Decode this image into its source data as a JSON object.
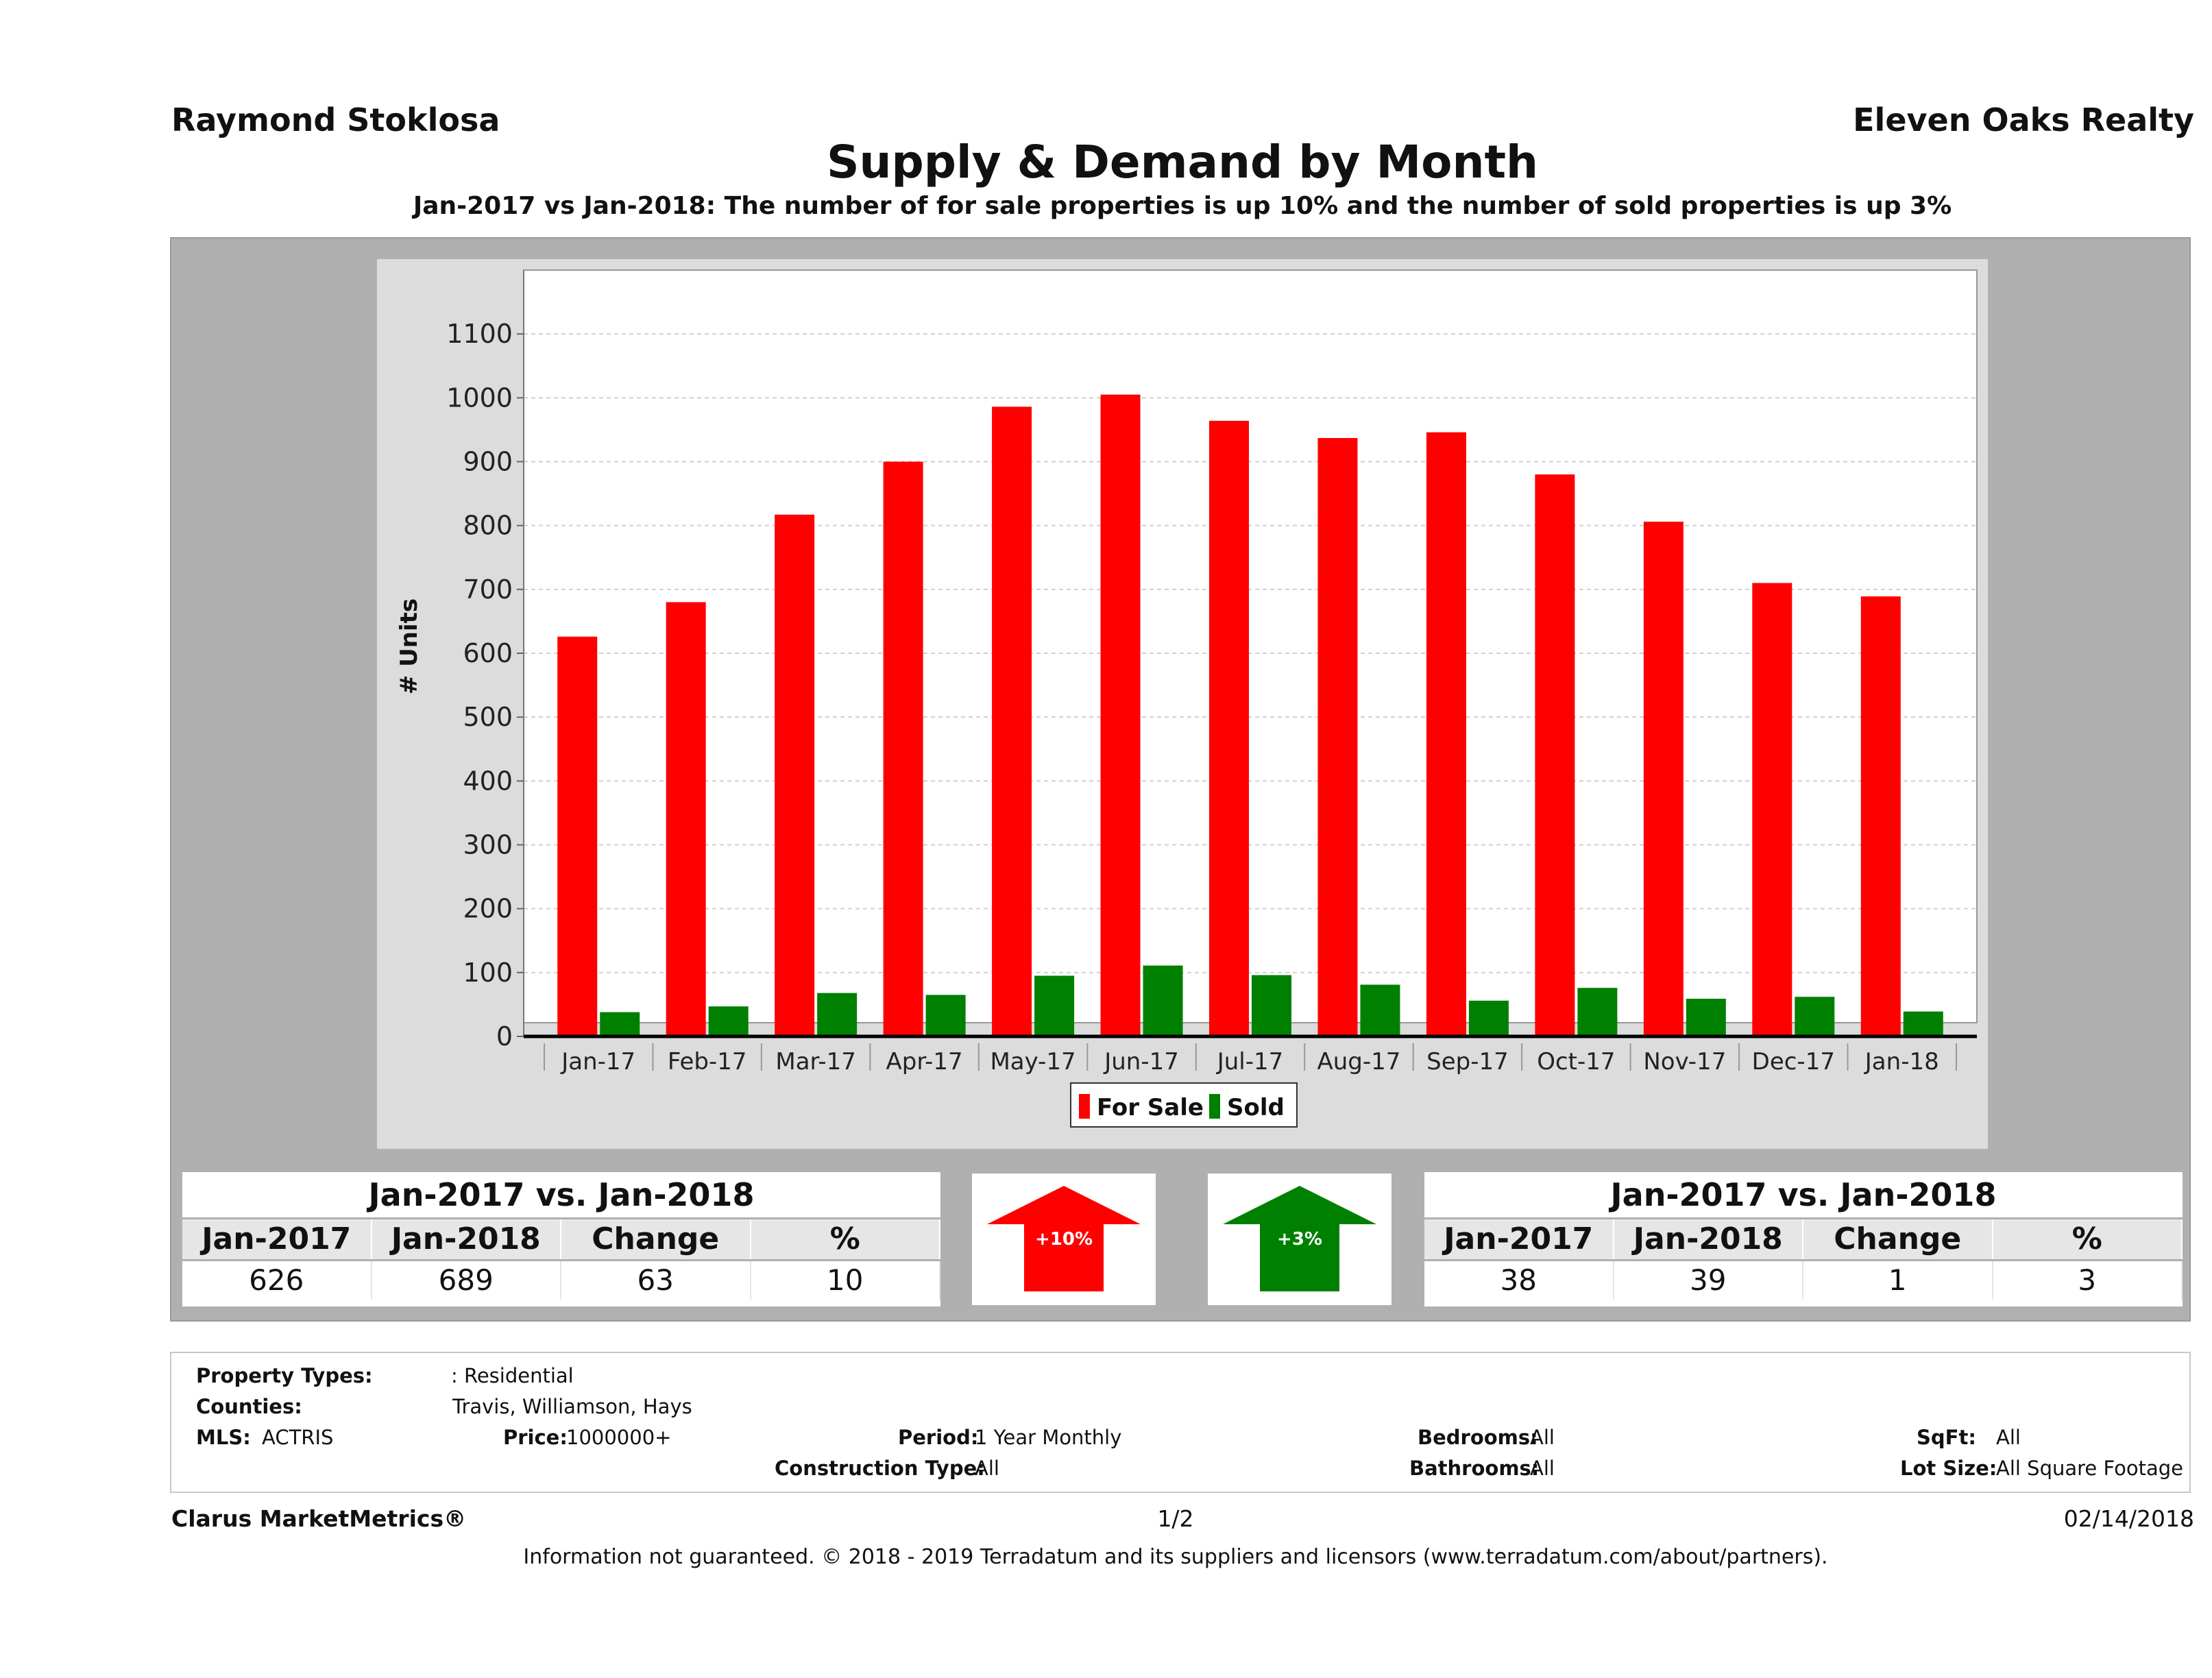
{
  "header": {
    "agent": "Raymond Stoklosa",
    "brokerage": "Eleven Oaks Realty",
    "title": "Supply & Demand by Month",
    "subtitle": "Jan-2017 vs Jan-2018: The number of for sale properties is up 10% and the number of sold properties is up 3%"
  },
  "chart_data": {
    "type": "bar",
    "title": "Supply & Demand by Month",
    "xlabel": "",
    "ylabel": "# Units",
    "ylim": [
      0,
      1200
    ],
    "yticks": [
      0,
      100,
      200,
      300,
      400,
      500,
      600,
      700,
      800,
      900,
      1000,
      1100
    ],
    "grid": true,
    "legend_position": "bottom-center",
    "categories": [
      "Jan-17",
      "Feb-17",
      "Mar-17",
      "Apr-17",
      "May-17",
      "Jun-17",
      "Jul-17",
      "Aug-17",
      "Sep-17",
      "Oct-17",
      "Nov-17",
      "Dec-17",
      "Jan-18"
    ],
    "series": [
      {
        "name": "For Sale",
        "color": "#ff0000",
        "values": [
          626,
          680,
          817,
          900,
          986,
          1005,
          964,
          937,
          946,
          880,
          806,
          710,
          689
        ]
      },
      {
        "name": "Sold",
        "color": "#008000",
        "values": [
          38,
          47,
          68,
          65,
          95,
          111,
          96,
          81,
          56,
          76,
          59,
          62,
          39
        ]
      }
    ]
  },
  "stats_left": {
    "title": "Jan-2017 vs. Jan-2018",
    "headers": [
      "Jan-2017",
      "Jan-2018",
      "Change",
      "%"
    ],
    "values": [
      "626",
      "689",
      "63",
      "10"
    ]
  },
  "arrow_left": {
    "label": "+10%",
    "color": "#ff0000"
  },
  "arrow_right": {
    "label": "+3%",
    "color": "#008000"
  },
  "stats_right": {
    "title": "Jan-2017 vs. Jan-2018",
    "headers": [
      "Jan-2017",
      "Jan-2018",
      "Change",
      "%"
    ],
    "values": [
      "38",
      "39",
      "1",
      "3"
    ]
  },
  "filters": {
    "property_types_label": "Property Types:",
    "property_types_value": ": Residential",
    "counties_label": "Counties:",
    "counties_value": "Travis, Williamson, Hays",
    "mls_label": "MLS:",
    "mls_value": "ACTRIS",
    "price_label": "Price:",
    "price_value": "1000000+",
    "period_label": "Period:",
    "period_value": "1 Year Monthly",
    "construction_label": "Construction Type:",
    "construction_value": "All",
    "bedrooms_label": "Bedrooms:",
    "bedrooms_value": "All",
    "bathrooms_label": "Bathrooms:",
    "bathrooms_value": "All",
    "sqft_label": "SqFt:",
    "sqft_value": "All",
    "lotsize_label": "Lot Size:",
    "lotsize_value": "All Square Footage"
  },
  "footer": {
    "product": "Clarus MarketMetrics®",
    "page": "1/2",
    "date": "02/14/2018",
    "disclaimer": "Information not guaranteed. © 2018 - 2019 Terradatum and its suppliers and licensors (www.terradatum.com/about/partners)."
  }
}
